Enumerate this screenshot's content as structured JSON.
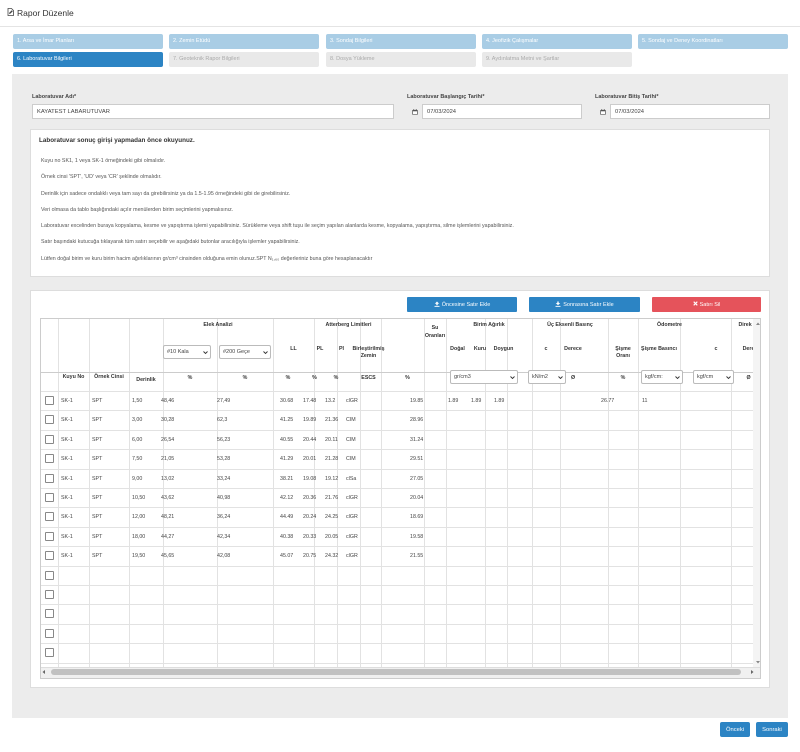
{
  "header": {
    "title": "Rapor Düzenle"
  },
  "steps": [
    {
      "label": "1. Arsa ve İmar Planları",
      "state": "light"
    },
    {
      "label": "2. Zemin Etüdü",
      "state": "light"
    },
    {
      "label": "3. Sondaj Bilgileri",
      "state": "light"
    },
    {
      "label": "4. Jeofizik Çalışmalar",
      "state": "light"
    },
    {
      "label": "5. Sondaj ve Deney Koordinatları",
      "state": "light"
    },
    {
      "label": "6. Laboratuvar Bilgileri",
      "state": "active"
    },
    {
      "label": "7. Geoteknik Rapor Bilgileri",
      "state": "disabled"
    },
    {
      "label": "8. Dosya Yükleme",
      "state": "disabled"
    },
    {
      "label": "9. Aydınlatma Metni ve Şartlar",
      "state": "disabled"
    }
  ],
  "form": {
    "lab_name_label": "Laboratuvar Adı*",
    "lab_name_value": "KAYATEST LABARUTUVAR",
    "start_label": "Laboratuvar Başlangıç Tarihi*",
    "start_value": "07/03/2024",
    "end_label": "Laboratuvar Bitiş Tarihi*",
    "end_value": "07/03/2024"
  },
  "info": {
    "heading": "Laboratuvar sonuç girişi yapmadan önce okuyunuz.",
    "lines": [
      "Kuyu no SK1, 1 veya SK-1 örneğindeki gibi olmalıdır.",
      "Örnek cinsi 'SPT', 'UD' veya 'CR' şeklinde olmalıdır.",
      "Derinlik için sadece ondalıklı veya tam sayı da girebilirsiniz ya da 1.5-1.95 örneğindeki gibi de girebilirsiniz.",
      "Veri olmasa da tablo başlığındaki açılır menülerden birim seçimlerini yapmalısınız.",
      "Laboratuvar excelinden buraya kopyalama, kesme ve yapıştırma işlemi yapabilirsiniz. Sürükleme veya shift tuşu ile seçim yapılan alanlarda kesme, kopyalama, yapıştırma, silme işlemlerini yapabilirsiniz.",
      "Satır başındaki kutucuğa tıklayarak tüm satırı seçebilir ve aşağıdaki butonlar aracılığıyla işlemler yapabilirsiniz.",
      "Lütfen doğal birim ve kuru birim hacim ağırlıklarının gr/cm³ cinsinden olduğuna emin olunuz.SPT N₁,₆₀ değerleriniz buna göre hesaplanacaktır"
    ]
  },
  "buttons": {
    "add_before": "Öncesine Satır Ekle",
    "add_after": "Sonrasına Satır Ekle",
    "delete": "Satırı Sil",
    "prev": "Önceki",
    "next": "Sonraki"
  },
  "colors": {
    "primary": "#2c84c4",
    "step_light": "#a9cde5",
    "danger": "#e5535b"
  },
  "table": {
    "groups": {
      "elek": "Elek Analizi",
      "atterberg": "Atterberg Limitleri",
      "su": "Su Oranları",
      "birim": "Birim Ağırlık",
      "ucek": "Üç Eksenli Basınç",
      "odometre": "Ödometre",
      "direk": "Direk Kesme"
    },
    "selects": {
      "kala": "#10 Kala",
      "gece": "#200 Geçe",
      "birim": "gr/cm3",
      "ucek": "kN/m2",
      "odo": "kgf/cm:",
      "direk": "kgf/cm"
    },
    "subheaders": {
      "ll": "LL",
      "pl": "PL",
      "pi": "PI",
      "birlesik": "Birleştirilmiş Zemin",
      "dogal": "Doğal",
      "kuru": "Kuru",
      "doygun": "Doygun",
      "c": "c",
      "derece": "Derece",
      "sisme": "Şişme Oranı",
      "sismeb": "Şişme Basıncı",
      "c2": "c",
      "derece2": "Dere"
    },
    "units": {
      "kuyu": "Kuyu No",
      "ornek": "Örnek Cinsi",
      "derinlik": "Derinlik",
      "pct1": "%",
      "pct2": "%",
      "pct3": "%",
      "pct4": "%",
      "pct5": "%",
      "escs": "ESCS",
      "pct6": "%",
      "phi1": "Ø",
      "pct7": "%",
      "phi2": "Ø"
    },
    "rows": [
      {
        "kuyu": "SK-1",
        "ornek": "SPT",
        "der": "1,50",
        "kala": "48,46",
        "gece": "27,49",
        "ll": "30.68",
        "pl": "17.48",
        "pi": "13.2",
        "zemin": "clGR",
        "su": "19.85",
        "dogal": "1.89",
        "kuru": "1.89",
        "doygun": "1.89",
        "sisme": "26.77",
        "sismeb": "11"
      },
      {
        "kuyu": "SK-1",
        "ornek": "SPT",
        "der": "3,00",
        "kala": "30,28",
        "gece": "62,3",
        "ll": "41.25",
        "pl": "19.89",
        "pi": "21.36",
        "zemin": "CIM",
        "su": "28.96"
      },
      {
        "kuyu": "SK-1",
        "ornek": "SPT",
        "der": "6,00",
        "kala": "26,54",
        "gece": "56,23",
        "ll": "40.55",
        "pl": "20.44",
        "pi": "20.11",
        "zemin": "CIM",
        "su": "31.24"
      },
      {
        "kuyu": "SK-1",
        "ornek": "SPT",
        "der": "7,50",
        "kala": "21,05",
        "gece": "53,28",
        "ll": "41.29",
        "pl": "20.01",
        "pi": "21.28",
        "zemin": "CIM",
        "su": "29.51"
      },
      {
        "kuyu": "SK-1",
        "ornek": "SPT",
        "der": "9,00",
        "kala": "13,02",
        "gece": "33,24",
        "ll": "38.21",
        "pl": "19.08",
        "pi": "19.12",
        "zemin": "clSa",
        "su": "27.05"
      },
      {
        "kuyu": "SK-1",
        "ornek": "SPT",
        "der": "10,50",
        "kala": "43,62",
        "gece": "40,98",
        "ll": "42.12",
        "pl": "20.36",
        "pi": "21.76",
        "zemin": "clGR",
        "su": "20.04"
      },
      {
        "kuyu": "SK-1",
        "ornek": "SPT",
        "der": "12,00",
        "kala": "48,21",
        "gece": "36,24",
        "ll": "44.49",
        "pl": "20.24",
        "pi": "24.25",
        "zemin": "clGR",
        "su": "18.69"
      },
      {
        "kuyu": "SK-1",
        "ornek": "SPT",
        "der": "18,00",
        "kala": "44,27",
        "gece": "42,34",
        "ll": "40.38",
        "pl": "20.33",
        "pi": "20.05",
        "zemin": "clGR",
        "su": "19.58"
      },
      {
        "kuyu": "SK-1",
        "ornek": "SPT",
        "der": "19,50",
        "kala": "45,65",
        "gece": "42,08",
        "ll": "45.07",
        "pl": "20.75",
        "pi": "24.32",
        "zemin": "clGR",
        "su": "21.55"
      },
      {},
      {},
      {},
      {},
      {}
    ]
  }
}
